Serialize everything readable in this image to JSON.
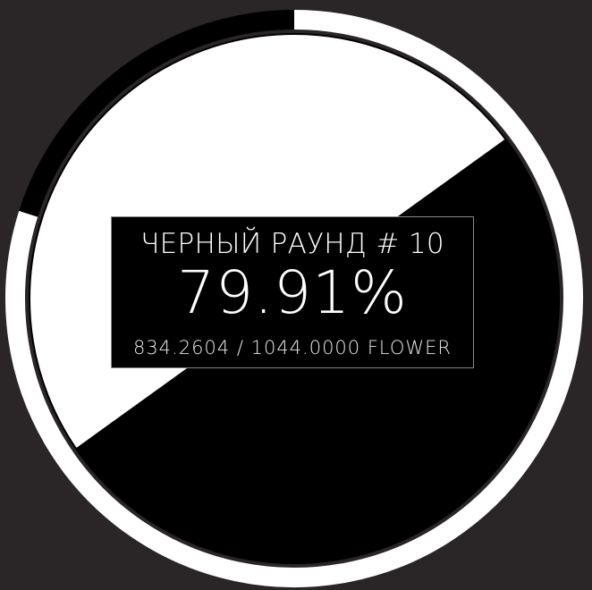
{
  "round": {
    "title": "ЧЕРНЫЙ РАУНД # 10",
    "percent": "79.91%",
    "current": "834.2604",
    "separator": " / ",
    "total": "1044.0000",
    "currency": "FLOWER"
  },
  "progress_fraction": 0.7991,
  "colors": {
    "background": "#2a2526",
    "black_side": "#000000",
    "white_side": "#ffffff"
  }
}
